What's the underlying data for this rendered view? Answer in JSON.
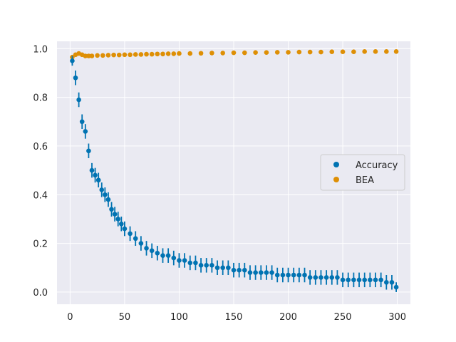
{
  "chart_data": {
    "type": "scatter",
    "title": "",
    "xlabel": "",
    "ylabel": "",
    "xlim": [
      -12,
      312
    ],
    "ylim": [
      -0.05,
      1.03
    ],
    "x_ticks": [
      0,
      50,
      100,
      150,
      200,
      250,
      300
    ],
    "y_ticks": [
      0.0,
      0.2,
      0.4,
      0.6,
      0.8,
      1.0
    ],
    "x_tick_labels": [
      "0",
      "50",
      "100",
      "150",
      "200",
      "250",
      "300"
    ],
    "y_tick_labels": [
      "0.0",
      "0.2",
      "0.4",
      "0.6",
      "0.8",
      "1.0"
    ],
    "grid": true,
    "legend_position": "center-right",
    "series": [
      {
        "name": "Accuracy",
        "color": "#0173b2",
        "error_bars": true,
        "x": [
          2,
          5,
          8,
          11,
          14,
          17,
          20,
          23,
          26,
          29,
          32,
          35,
          38,
          41,
          44,
          47,
          50,
          55,
          60,
          65,
          70,
          75,
          80,
          85,
          90,
          95,
          100,
          105,
          110,
          115,
          120,
          125,
          130,
          135,
          140,
          145,
          150,
          155,
          160,
          165,
          170,
          175,
          180,
          185,
          190,
          195,
          200,
          205,
          210,
          215,
          220,
          225,
          230,
          235,
          240,
          245,
          250,
          255,
          260,
          265,
          270,
          275,
          280,
          285,
          290,
          295,
          299
        ],
        "y": [
          0.95,
          0.88,
          0.79,
          0.7,
          0.66,
          0.58,
          0.5,
          0.48,
          0.46,
          0.42,
          0.4,
          0.38,
          0.34,
          0.32,
          0.3,
          0.28,
          0.26,
          0.24,
          0.22,
          0.2,
          0.18,
          0.17,
          0.16,
          0.15,
          0.15,
          0.14,
          0.13,
          0.13,
          0.12,
          0.12,
          0.11,
          0.11,
          0.11,
          0.1,
          0.1,
          0.1,
          0.09,
          0.09,
          0.09,
          0.08,
          0.08,
          0.08,
          0.08,
          0.08,
          0.07,
          0.07,
          0.07,
          0.07,
          0.07,
          0.07,
          0.06,
          0.06,
          0.06,
          0.06,
          0.06,
          0.06,
          0.05,
          0.05,
          0.05,
          0.05,
          0.05,
          0.05,
          0.05,
          0.05,
          0.04,
          0.04,
          0.02
        ],
        "err": [
          0.02,
          0.03,
          0.03,
          0.03,
          0.03,
          0.03,
          0.03,
          0.03,
          0.03,
          0.03,
          0.03,
          0.03,
          0.03,
          0.03,
          0.03,
          0.03,
          0.03,
          0.03,
          0.03,
          0.03,
          0.03,
          0.03,
          0.03,
          0.03,
          0.03,
          0.03,
          0.03,
          0.03,
          0.03,
          0.03,
          0.03,
          0.03,
          0.03,
          0.03,
          0.03,
          0.03,
          0.03,
          0.03,
          0.03,
          0.03,
          0.03,
          0.03,
          0.03,
          0.03,
          0.03,
          0.03,
          0.03,
          0.03,
          0.03,
          0.03,
          0.03,
          0.03,
          0.03,
          0.03,
          0.03,
          0.03,
          0.03,
          0.03,
          0.03,
          0.03,
          0.03,
          0.03,
          0.03,
          0.03,
          0.03,
          0.03,
          0.02
        ]
      },
      {
        "name": "BEA",
        "color": "#de8f05",
        "error_bars": false,
        "x": [
          2,
          5,
          8,
          11,
          14,
          17,
          20,
          25,
          30,
          35,
          40,
          45,
          50,
          55,
          60,
          65,
          70,
          75,
          80,
          85,
          90,
          95,
          100,
          110,
          120,
          130,
          140,
          150,
          160,
          170,
          180,
          190,
          200,
          210,
          220,
          230,
          240,
          250,
          260,
          270,
          280,
          290,
          299
        ],
        "y": [
          0.965,
          0.975,
          0.98,
          0.975,
          0.97,
          0.97,
          0.97,
          0.972,
          0.972,
          0.973,
          0.974,
          0.974,
          0.975,
          0.975,
          0.976,
          0.976,
          0.977,
          0.977,
          0.978,
          0.978,
          0.979,
          0.979,
          0.98,
          0.98,
          0.981,
          0.982,
          0.982,
          0.983,
          0.983,
          0.984,
          0.984,
          0.985,
          0.985,
          0.986,
          0.986,
          0.986,
          0.987,
          0.987,
          0.987,
          0.988,
          0.988,
          0.988,
          0.988
        ]
      }
    ]
  }
}
